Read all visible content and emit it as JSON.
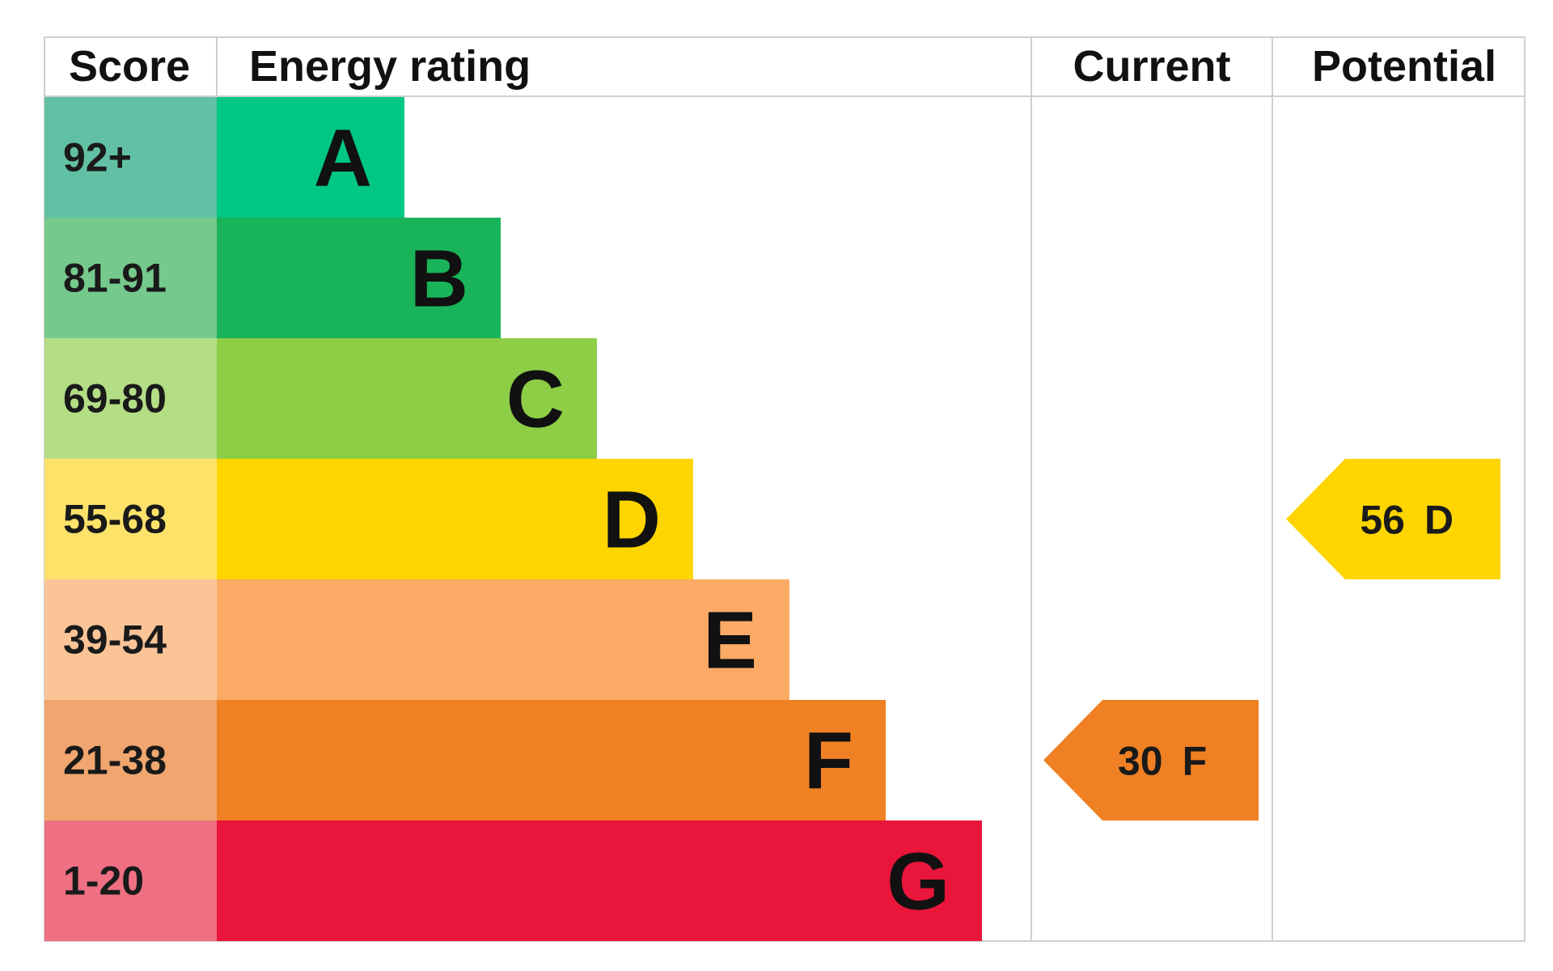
{
  "chart_data": {
    "type": "bar",
    "headers": {
      "score": "Score",
      "rating": "Energy rating",
      "current": "Current",
      "potential": "Potential"
    },
    "bands": [
      {
        "letter": "A",
        "score_range": "92+",
        "bar_color": "#00c781",
        "score_color": "#62c1a4"
      },
      {
        "letter": "B",
        "score_range": "81-91",
        "bar_color": "#19b459",
        "score_color": "#76c98c"
      },
      {
        "letter": "C",
        "score_range": "69-80",
        "bar_color": "#8dce46",
        "score_color": "#b4de86"
      },
      {
        "letter": "D",
        "score_range": "55-68",
        "bar_color": "#ffd500",
        "score_color": "#fde26a"
      },
      {
        "letter": "E",
        "score_range": "39-54",
        "bar_color": "#fcaa65",
        "score_color": "#fbc497"
      },
      {
        "letter": "F",
        "score_range": "21-38",
        "bar_color": "#ef8023",
        "score_color": "#f1a66f"
      },
      {
        "letter": "G",
        "score_range": "1-20",
        "bar_color": "#e9153b",
        "score_color": "#ee7082"
      }
    ],
    "current": {
      "score": "30",
      "band": "F",
      "color": "#ef8023"
    },
    "potential": {
      "score": "56",
      "band": "D",
      "color": "#ffd500"
    }
  }
}
